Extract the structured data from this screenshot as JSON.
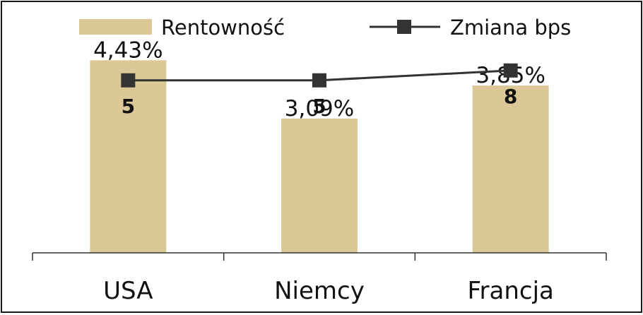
{
  "chart_data": {
    "type": "bar",
    "categories": [
      "USA",
      "Niemcy",
      "Francja"
    ],
    "series": [
      {
        "name": "Rentowność",
        "kind": "bar",
        "axis": "left",
        "values": [
          4.43,
          3.09,
          3.85
        ],
        "labels": [
          "4,43%",
          "3,09%",
          "3,85%"
        ],
        "color": "#DCC896"
      },
      {
        "name": "Zmiana bps",
        "kind": "line",
        "axis": "right",
        "values": [
          5,
          5,
          8
        ],
        "labels": [
          "5",
          "5",
          "8"
        ],
        "color": "#333333"
      }
    ],
    "legend_position": "top",
    "grid": false,
    "title": "",
    "xlabel": "",
    "ylabel": ""
  }
}
